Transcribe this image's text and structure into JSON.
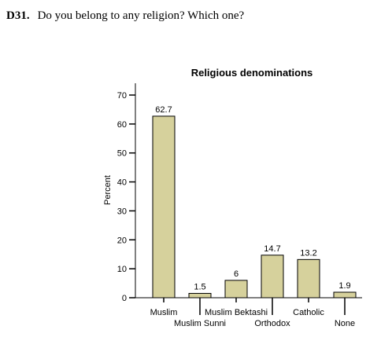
{
  "question": {
    "number": "D31.",
    "text": "Do you belong to any religion? Which one?"
  },
  "chart_data": {
    "type": "bar",
    "title": "Religious denominations",
    "ylabel": "Percent",
    "xlabel": "",
    "ylim": [
      0,
      70
    ],
    "yticks": [
      0,
      10,
      20,
      30,
      40,
      50,
      60,
      70
    ],
    "grid": false,
    "bar_color": "#d6d19c",
    "categories": [
      "Muslim",
      "Muslim Sunni",
      "Muslim Bektashi",
      "Orthodox",
      "Catholic",
      "None"
    ],
    "values": [
      62.7,
      1.5,
      6,
      14.7,
      13.2,
      1.9
    ],
    "value_labels": [
      "62.7",
      "1.5",
      "6",
      "14.7",
      "13.2",
      "1.9"
    ]
  }
}
